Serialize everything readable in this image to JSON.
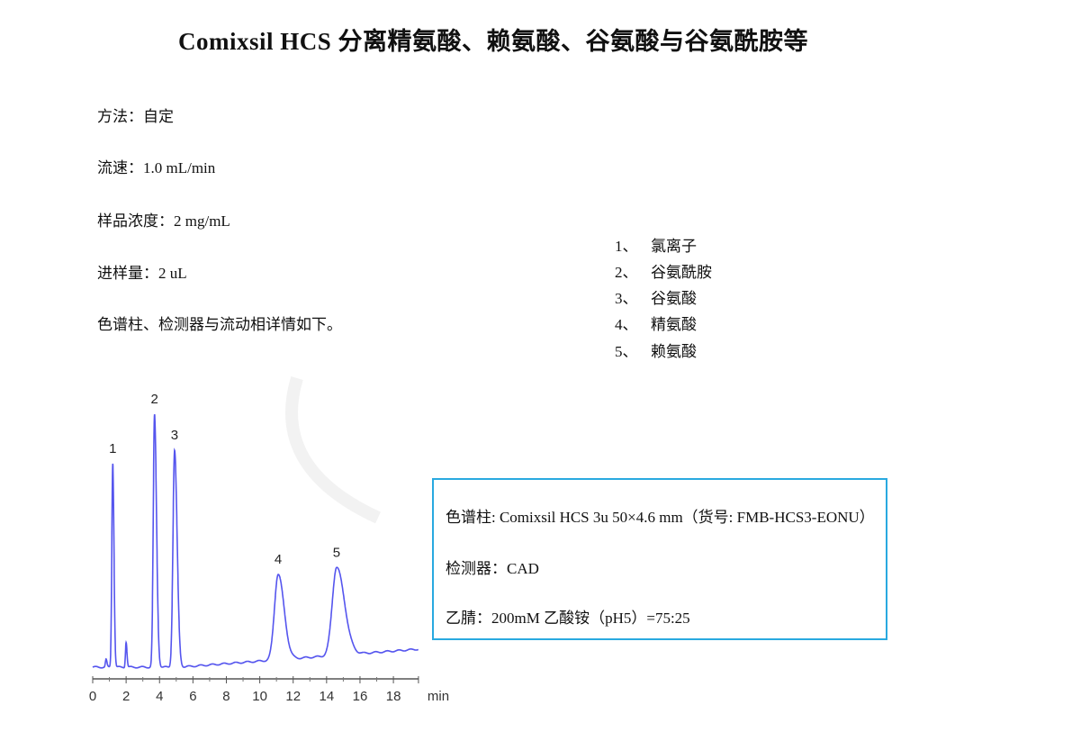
{
  "title": "Comixsil HCS 分离精氨酸、赖氨酸、谷氨酸与谷氨酰胺等",
  "params": [
    "方法：自定",
    "流速：1.0 mL/min",
    "样品浓度：2 mg/mL",
    "进样量：2 uL",
    "色谱柱、检测器与流动相详情如下。"
  ],
  "peak_legend": [
    {
      "num": "1、",
      "name": "氯离子"
    },
    {
      "num": "2、",
      "name": "谷氨酰胺"
    },
    {
      "num": "3、",
      "name": "谷氨酸"
    },
    {
      "num": "4、",
      "name": "精氨酸"
    },
    {
      "num": "5、",
      "name": "赖氨酸"
    }
  ],
  "conditions": {
    "column": "色谱柱: Comixsil HCS 3u 50×4.6 mm（货号: FMB-HCS3-EONU）",
    "detector": "检测器：CAD",
    "mobile_phase": "乙腈：200mM  乙酸铵（pH5）=75:25"
  },
  "colors": {
    "trace": "#5555ee",
    "box_border": "#29a9e0"
  },
  "chart_data": {
    "type": "line",
    "xlabel": "min",
    "xlim": [
      0,
      19.5
    ],
    "xticks": [
      "0",
      "2",
      "4",
      "6",
      "8",
      "10",
      "12",
      "14",
      "16",
      "18"
    ],
    "y_axis_shown": false,
    "grid": false,
    "peaks": [
      {
        "label": "1",
        "time": 1.2,
        "relative_height": 81
      },
      {
        "label": "2",
        "time": 3.7,
        "relative_height": 100
      },
      {
        "label": "3",
        "time": 4.9,
        "relative_height": 86
      },
      {
        "label": "4",
        "time": 11.1,
        "relative_height": 34
      },
      {
        "label": "5",
        "time": 14.6,
        "relative_height": 35
      }
    ],
    "minor_peaks": [
      {
        "time": 0.8,
        "relative_height": 3
      },
      {
        "time": 2.0,
        "relative_height": 10
      }
    ]
  }
}
